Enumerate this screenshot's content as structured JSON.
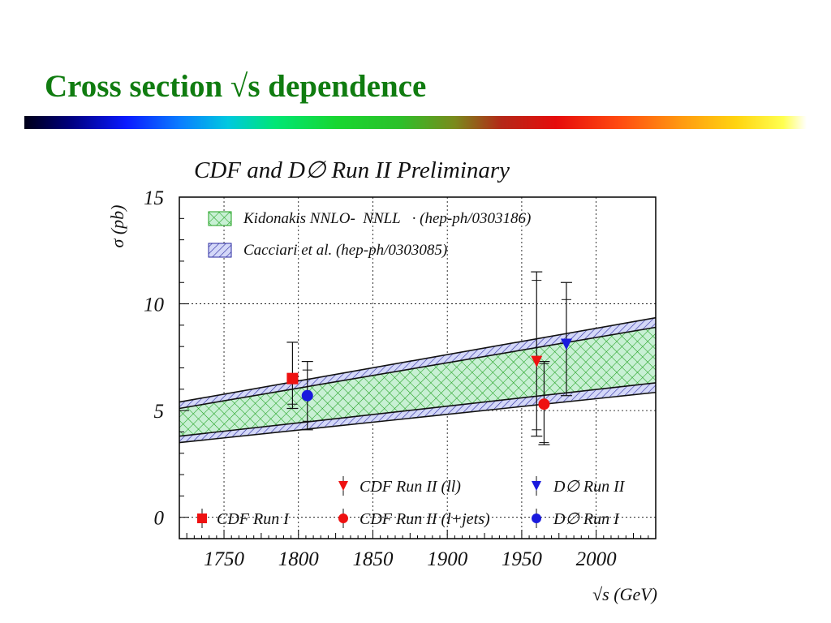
{
  "slide": {
    "title": "Cross section √s dependence",
    "title_color": "#107c10"
  },
  "chart_data": {
    "type": "scatter",
    "title": "CDF and D∅ Run II Preliminary",
    "xlabel": "√s (GeV)",
    "ylabel": "σ (pb)",
    "xlim": [
      1720,
      2040
    ],
    "ylim": [
      -1,
      15
    ],
    "xticks": [
      1750,
      1800,
      1850,
      1900,
      1950,
      2000
    ],
    "yticks": [
      0,
      5,
      10,
      15
    ],
    "grid": true,
    "bands": [
      {
        "name": "Kidonakis NNLO-  NNLL   · (hep-ph/0303186)",
        "pattern": "cross-hatch",
        "color": "#1ea01e",
        "fill": "#c8f0d4",
        "x": [
          1720,
          2040
        ],
        "lower": [
          3.8,
          6.3
        ],
        "upper": [
          5.1,
          8.9
        ]
      },
      {
        "name": "Cacciari et al. (hep-ph/0303085)",
        "pattern": "diagonal-hatch",
        "color": "#2a2aa0",
        "fill": "#d4d8f8",
        "x": [
          1720,
          2040
        ],
        "lower": [
          3.5,
          5.85
        ],
        "upper": [
          5.4,
          9.35
        ]
      }
    ],
    "series": [
      {
        "name": "CDF Run I",
        "marker": "square",
        "color": "#ee1111",
        "points": [
          {
            "x": 1796,
            "y": 6.5,
            "err_low": 1.4,
            "err_high": 1.7,
            "err_stat_low": 1.2,
            "err_stat_high": 0.0
          }
        ]
      },
      {
        "name": "D∅ Run I",
        "marker": "circle",
        "color": "#1a1add",
        "points": [
          {
            "x": 1806,
            "y": 5.7,
            "err_low": 1.6,
            "err_high": 1.6,
            "err_stat_low": 1.2,
            "err_stat_high": 1.2
          }
        ]
      },
      {
        "name": "CDF Run II (ll)",
        "marker": "triangle-down",
        "color": "#ee1111",
        "points": [
          {
            "x": 1960,
            "y": 7.3,
            "err_low": 3.5,
            "err_high": 4.2,
            "err_stat_low": 3.2,
            "err_stat_high": 3.8
          }
        ]
      },
      {
        "name": "CDF Run II (l+jets)",
        "marker": "circle",
        "color": "#ee1111",
        "points": [
          {
            "x": 1965,
            "y": 5.3,
            "err_low": 1.9,
            "err_high": 2.0,
            "err_stat_low": 1.8,
            "err_stat_high": 1.9
          }
        ]
      },
      {
        "name": "D∅ Run II",
        "marker": "triangle-down",
        "color": "#1a1add",
        "points": [
          {
            "x": 1980,
            "y": 8.1,
            "err_low": 2.4,
            "err_high": 2.9,
            "err_stat_low": 0.0,
            "err_stat_high": 2.1
          }
        ]
      }
    ],
    "legend": {
      "bands_placement": "top-left",
      "points_placement": "bottom",
      "points_order": [
        "CDF Run II (ll)",
        "D∅ Run II",
        "CDF Run I",
        "CDF Run II (l+jets)",
        "D∅ Run I"
      ]
    }
  }
}
